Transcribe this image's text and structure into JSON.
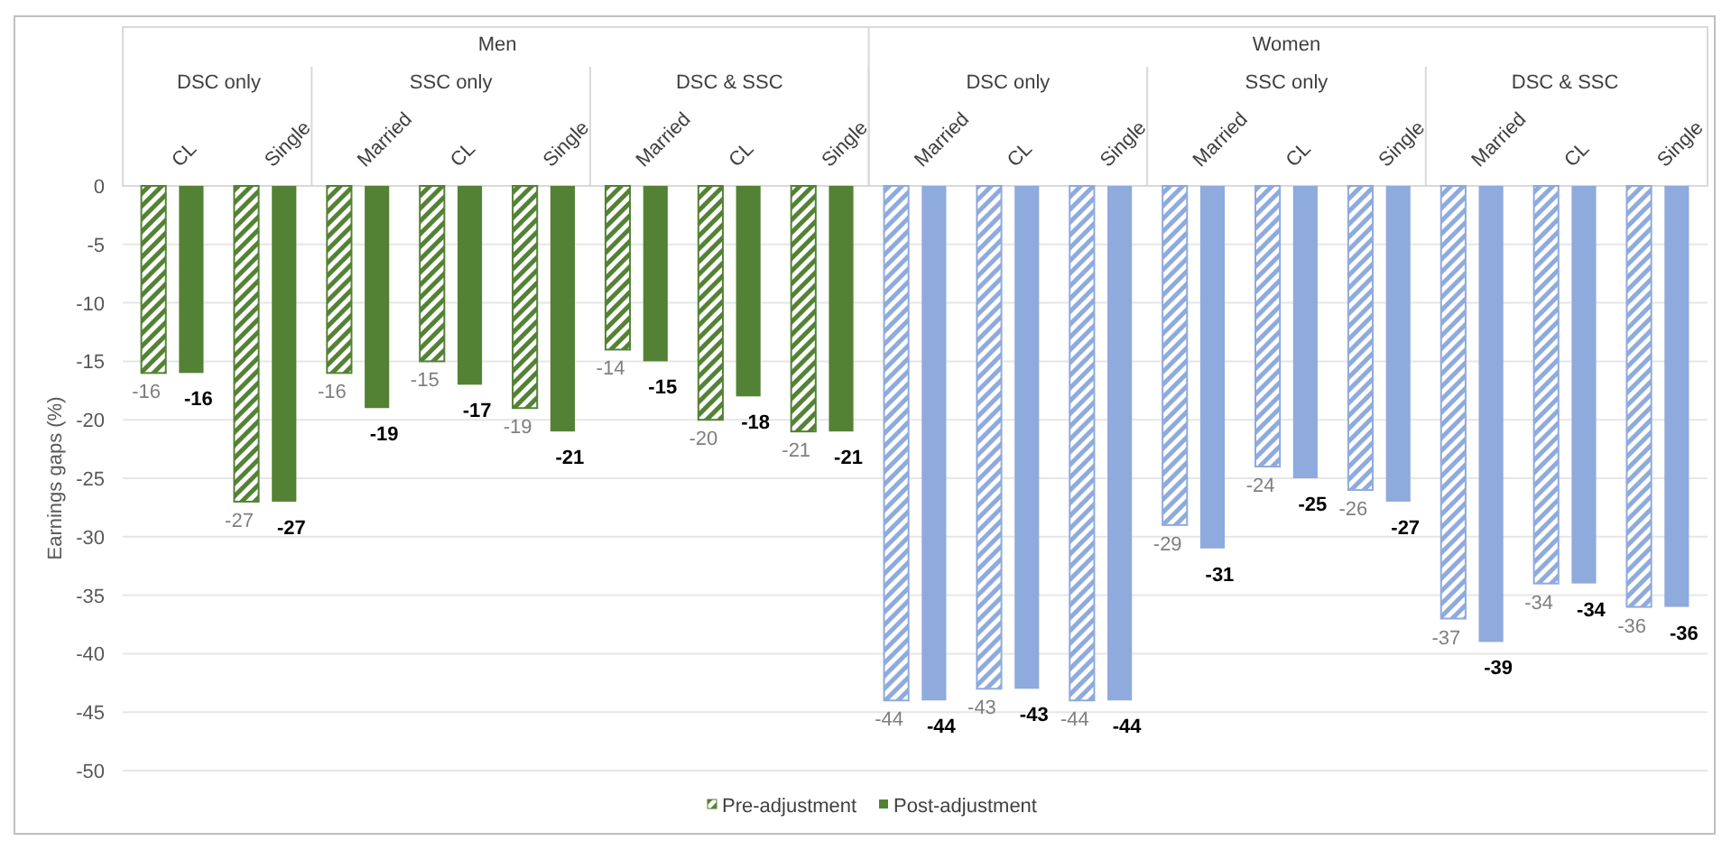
{
  "chart_data": {
    "type": "bar",
    "ylabel": "Earnings gaps (%)",
    "categories": [
      "CL",
      "Single",
      "Married",
      "CL",
      "Single",
      "Married",
      "CL",
      "Single",
      "Married",
      "CL",
      "Single",
      "Married",
      "CL",
      "Single",
      "Married",
      "CL",
      "Single"
    ],
    "series": [
      {
        "name": "Pre-adjustment",
        "color": "#548235",
        "colors": [
          "#548235",
          "#548235",
          "#548235",
          "#548235",
          "#548235",
          "#548235",
          "#548235",
          "#548235",
          "#8faadc",
          "#8faadc",
          "#8faadc",
          "#8faadc",
          "#8faadc",
          "#8faadc",
          "#8faadc",
          "#8faadc",
          "#8faadc"
        ],
        "values": [
          -16,
          -27,
          -16,
          -15,
          -19,
          -14,
          -20,
          -21,
          -44,
          -43,
          -44,
          -29,
          -24,
          -26,
          -37,
          -34,
          -36
        ]
      },
      {
        "name": "Post-adjustment",
        "color": "#548235",
        "colors": [
          "#548235",
          "#548235",
          "#548235",
          "#548235",
          "#548235",
          "#548235",
          "#548235",
          "#548235",
          "#8faadc",
          "#8faadc",
          "#8faadc",
          "#8faadc",
          "#8faadc",
          "#8faadc",
          "#8faadc",
          "#8faadc",
          "#8faadc"
        ],
        "values": [
          -16,
          -27,
          -19,
          -17,
          -21,
          -15,
          -18,
          -21,
          -44,
          -43,
          -44,
          -31,
          -25,
          -27,
          -39,
          -34,
          -36
        ]
      }
    ],
    "annotations": [
      "Men",
      "Women",
      "DSC only",
      "SSC only",
      "DSC & SSC",
      "DSC only",
      "SSC only",
      "DSC & SSC"
    ],
    "ylim": [
      -50,
      0
    ],
    "yticks": [
      0,
      -5,
      -10,
      -15,
      -20,
      -25,
      -30,
      -35,
      -40,
      -45,
      -50
    ],
    "grid": "y",
    "legend": "bottom",
    "data_labels": true
  }
}
